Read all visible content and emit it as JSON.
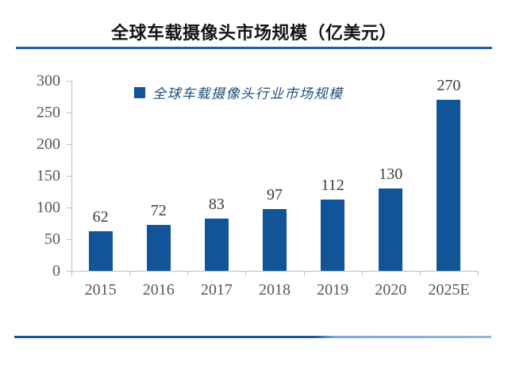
{
  "title": "全球车载摄像头市场规模（亿美元）",
  "legend": {
    "label": "全球车载摄像头行业市场规模"
  },
  "colors": {
    "bar": "#115498",
    "accent_line": "#1F5FA8",
    "accent_line_light": "#7FA8D6",
    "axis": "#BFBFBF",
    "tick_label": "#5B574F",
    "value_label": "#3D3B36",
    "legend_text": "#1F4E79",
    "title_text": "#141414"
  },
  "chart_data": {
    "type": "bar",
    "title": "全球车载摄像头市场规模（亿美元）",
    "series_name": "全球车载摄像头行业市场规模",
    "categories": [
      "2015",
      "2016",
      "2017",
      "2018",
      "2019",
      "2020",
      "2025E"
    ],
    "values": [
      62,
      72,
      83,
      97,
      112,
      130,
      270
    ],
    "xlabel": "",
    "ylabel": "",
    "ylim": [
      0,
      300
    ],
    "yticks": [
      0,
      50,
      100,
      150,
      200,
      250,
      300
    ],
    "grid": false,
    "legend_position": "top-center",
    "data_labels": true
  }
}
